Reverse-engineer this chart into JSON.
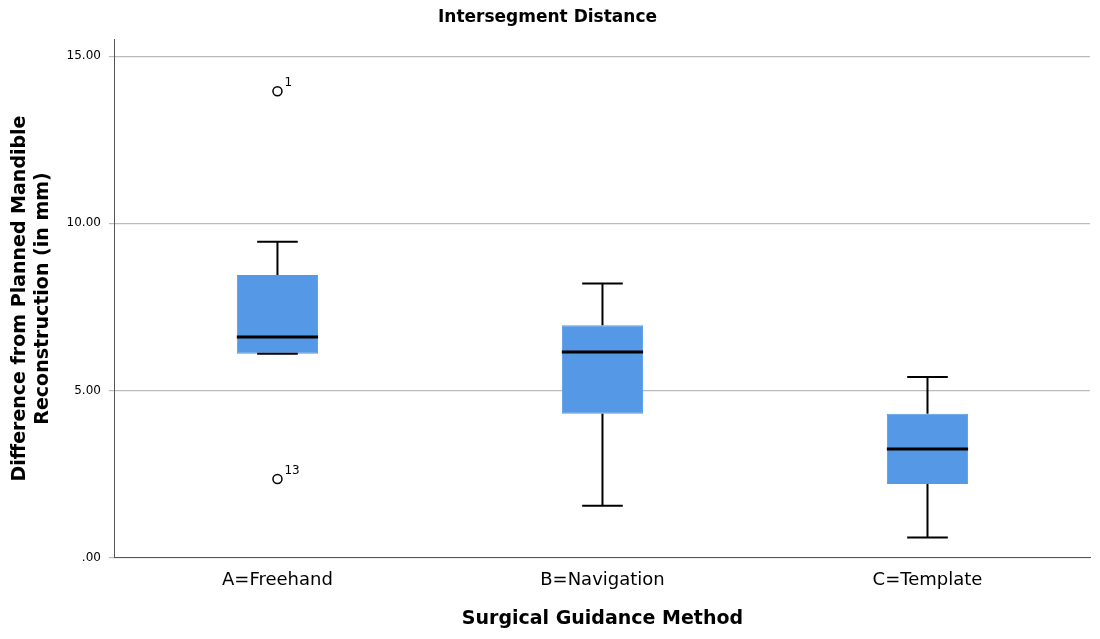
{
  "chart_data": {
    "type": "box",
    "title": "Intersegment Distance",
    "xlabel": "Surgical Guidance Method",
    "ylabel": "Difference from Planned Mandible Reconstruction (in mm)",
    "categories": [
      "A=Freehand",
      "B=Navigation",
      "C=Template"
    ],
    "boxes": [
      {
        "low": 6.1,
        "q1": 6.1,
        "median": 6.6,
        "q3": 8.45,
        "high": 9.45,
        "outliers": [
          13.95,
          2.35
        ]
      },
      {
        "low": 1.55,
        "q1": 4.3,
        "median": 6.15,
        "q3": 6.95,
        "high": 8.2
      },
      {
        "low": 0.6,
        "q1": 2.2,
        "median": 3.25,
        "q3": 4.3,
        "high": 5.4
      }
    ],
    "color": "#5599e6",
    "ylim": [
      0,
      15.5
    ],
    "yticks": [
      {
        "value": 0,
        "label": ".00"
      },
      {
        "value": 5,
        "label": "5.00"
      },
      {
        "value": 10,
        "label": "10.00"
      },
      {
        "value": 15,
        "label": "15.00"
      }
    ],
    "grid": "y",
    "legend": false,
    "annotations": [
      "1",
      "13"
    ]
  }
}
